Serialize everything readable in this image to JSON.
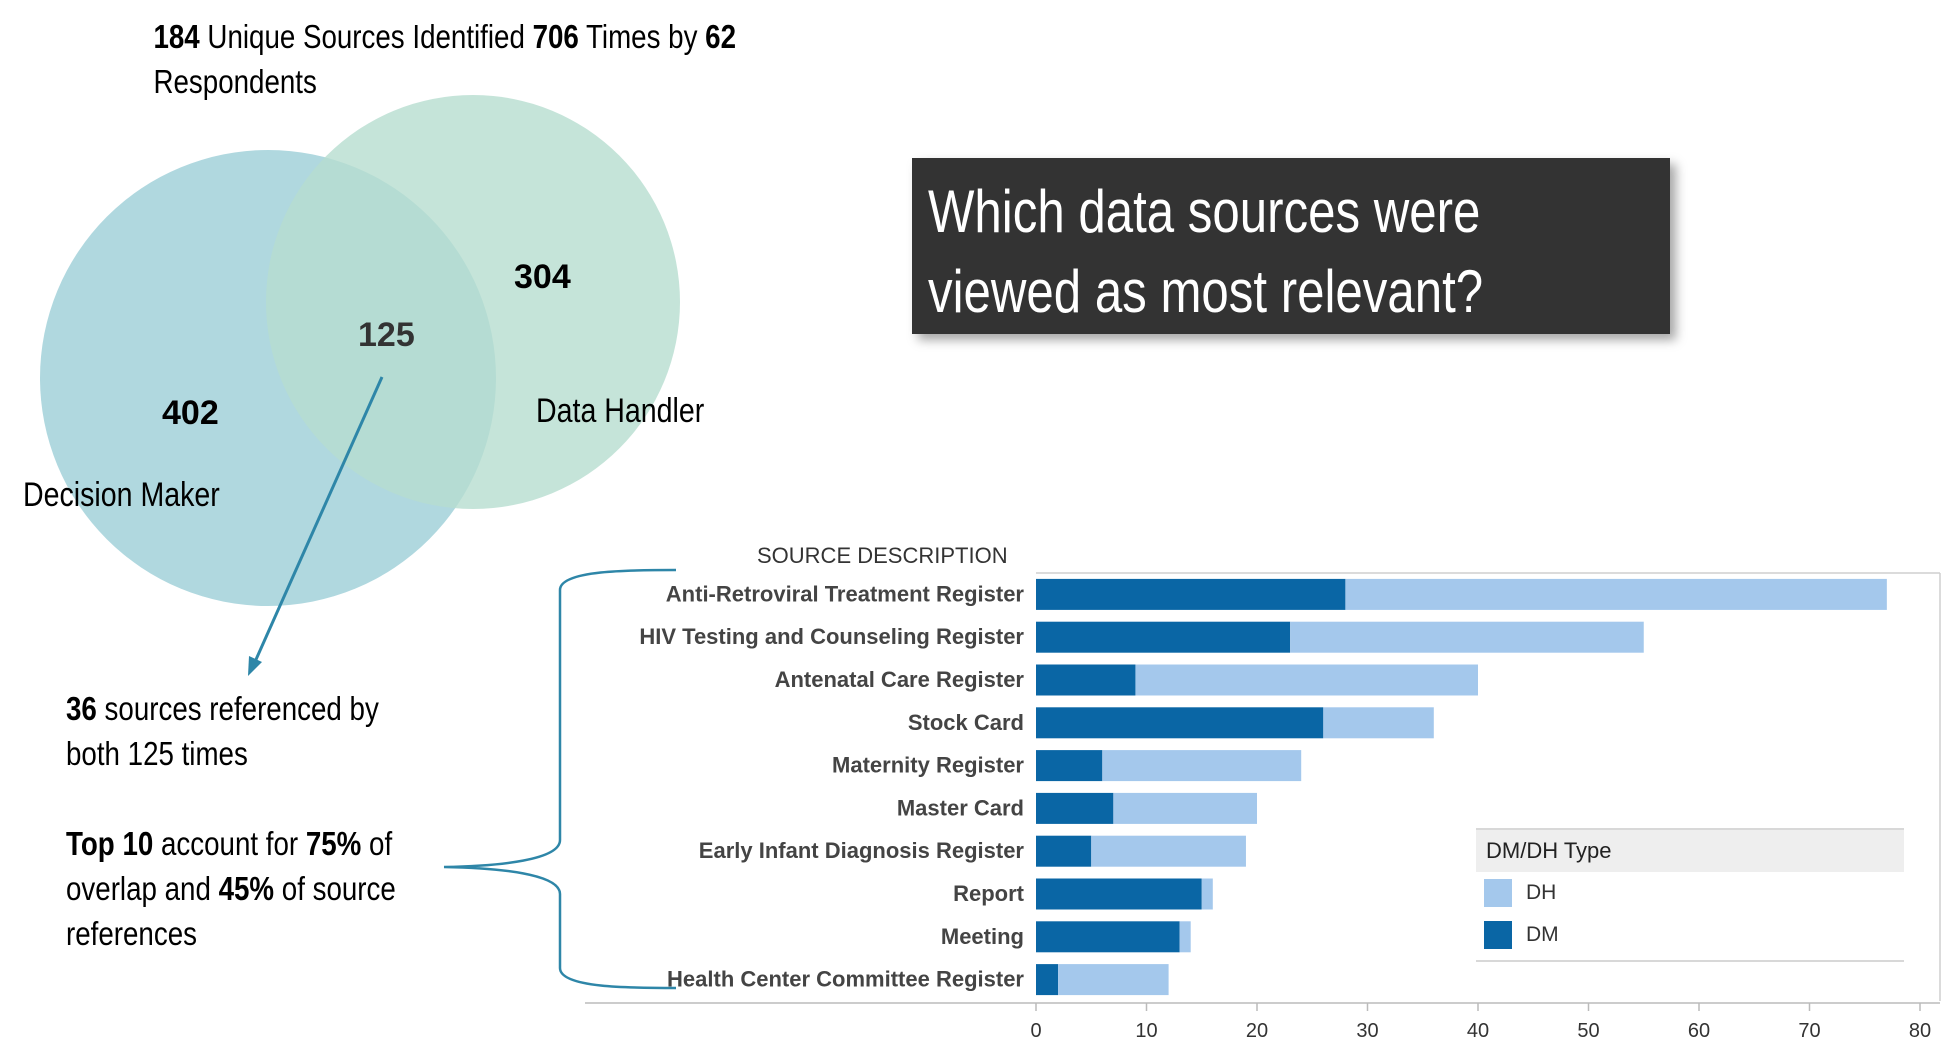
{
  "summary": {
    "line1": [
      {
        "text": "184",
        "bold": true
      },
      {
        "text": " Unique Sources Identified ",
        "bold": false
      },
      {
        "text": "706",
        "bold": true
      },
      {
        "text": " Times by ",
        "bold": false
      },
      {
        "text": "62",
        "bold": true
      }
    ],
    "line2": "Respondents"
  },
  "venn": {
    "decision_maker_only": "402",
    "overlap": "125",
    "data_handler_only": "304",
    "decision_maker_label": "Decision Maker",
    "data_handler_label": "Data Handler",
    "colors": {
      "decision_maker": "#a9d5dc",
      "data_handler": "#b7ddd0",
      "arrow": "#2e86a8"
    }
  },
  "question": {
    "line1": "Which data sources were",
    "line2": "viewed as most relevant?"
  },
  "notes": {
    "line1": [
      {
        "text": "36",
        "bold": true
      },
      {
        "text": " sources referenced by",
        "bold": false
      }
    ],
    "line2": [
      {
        "text": "both 125 times",
        "bold": false
      }
    ],
    "line3": [
      {
        "text": "Top 10",
        "bold": true
      },
      {
        "text": " account for ",
        "bold": false
      },
      {
        "text": "75%",
        "bold": true
      },
      {
        "text": " of",
        "bold": false
      }
    ],
    "line4": [
      {
        "text": "overlap and ",
        "bold": false
      },
      {
        "text": "45%",
        "bold": true
      },
      {
        "text": " of source",
        "bold": false
      }
    ],
    "line5": [
      {
        "text": "references",
        "bold": false
      }
    ]
  },
  "chart_data": {
    "type": "bar",
    "orientation": "horizontal",
    "stacked": true,
    "category_header": "SOURCE DESCRIPTION",
    "categories": [
      "Anti-Retroviral Treatment Register",
      "HIV Testing and Counseling Register",
      "Antenatal Care Register",
      "Stock Card",
      "Maternity Register",
      "Master Card",
      "Early Infant Diagnosis Register",
      "Report",
      "Meeting",
      "Health Center Committee Register"
    ],
    "series": [
      {
        "name": "DM",
        "color": "#0a66a5",
        "values": [
          28,
          23,
          9,
          26,
          6,
          7,
          5,
          15,
          13,
          2
        ]
      },
      {
        "name": "DH",
        "color": "#a4c8ec",
        "values": [
          49,
          32,
          31,
          10,
          18,
          13,
          14,
          1,
          1,
          10
        ]
      }
    ],
    "xlim": [
      0,
      80
    ],
    "xticks": [
      "0",
      "10",
      "20",
      "30",
      "40",
      "50",
      "60",
      "70",
      "80"
    ],
    "legend": {
      "title": "DM/DH Type",
      "entries": [
        "DH",
        "DM"
      ],
      "position": "right"
    },
    "grid": false
  }
}
